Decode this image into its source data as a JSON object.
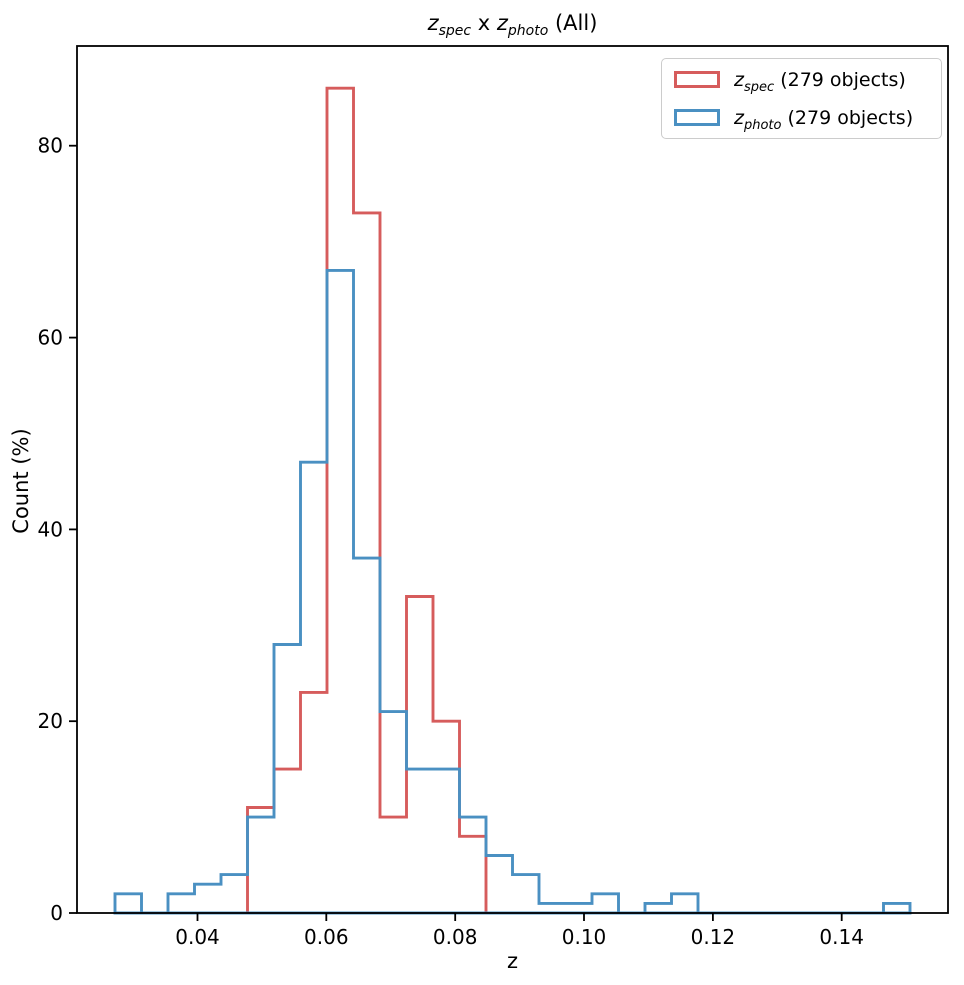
{
  "title": {
    "parts": {
      "var1": "z",
      "sub1": "spec",
      "mid": " x ",
      "var2": "z",
      "sub2": "photo",
      "suffix": " (All)"
    }
  },
  "legend": {
    "entries": [
      {
        "var": "z",
        "sub": "spec",
        "rest": " (279 objects)",
        "color": "#d65c5c"
      },
      {
        "var": "z",
        "sub": "photo",
        "rest": " (279 objects)",
        "color": "#4a90c2"
      }
    ]
  },
  "chart_data": {
    "type": "histogram-step",
    "title": "z_spec x z_photo (All)",
    "xlabel": "z",
    "ylabel": "Count (%)",
    "grid": false,
    "legend_position": "upper right",
    "xlim": [
      0.0213,
      0.1565
    ],
    "ylim": [
      0,
      90.4
    ],
    "xticks": [
      0.04,
      0.06,
      0.08,
      0.1,
      0.12,
      0.14
    ],
    "xtick_labels": [
      "0.04",
      "0.06",
      "0.08",
      "0.10",
      "0.12",
      "0.14"
    ],
    "yticks": [
      0,
      20,
      40,
      60,
      80
    ],
    "ytick_labels": [
      "0",
      "20",
      "40",
      "60",
      "80"
    ],
    "bin_edges": [
      0.0272,
      0.03131,
      0.03543,
      0.03954,
      0.04365,
      0.04777,
      0.05188,
      0.05599,
      0.06011,
      0.06422,
      0.06833,
      0.07245,
      0.07656,
      0.08067,
      0.08479,
      0.0889,
      0.09301,
      0.09713,
      0.10124,
      0.10535,
      0.10947,
      0.11358,
      0.11769,
      0.12181,
      0.12592,
      0.13003,
      0.13415,
      0.13826,
      0.14237,
      0.14649,
      0.1506
    ],
    "series": [
      {
        "name": "z_spec (279 objects)",
        "color": "#d65c5c",
        "total_objects": 279,
        "counts": [
          0,
          0,
          0,
          0,
          0,
          11,
          15,
          23,
          86,
          73,
          10,
          33,
          20,
          8,
          0,
          0,
          0,
          0,
          0,
          0,
          0,
          0,
          0,
          0,
          0,
          0,
          0,
          0,
          0,
          0
        ]
      },
      {
        "name": "z_photo (279 objects)",
        "color": "#4a90c2",
        "total_objects": 279,
        "counts": [
          2,
          0,
          2,
          3,
          4,
          10,
          28,
          47,
          67,
          37,
          21,
          15,
          15,
          10,
          6,
          4,
          1,
          1,
          2,
          0,
          1,
          2,
          0,
          0,
          0,
          0,
          0,
          0,
          0,
          1
        ]
      }
    ]
  }
}
